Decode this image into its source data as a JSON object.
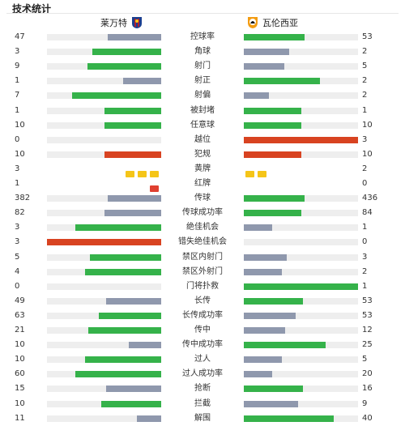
{
  "title": "技术统计",
  "home": {
    "name": "莱万特",
    "crest": "levante-crest-icon"
  },
  "away": {
    "name": "瓦伦西亚",
    "crest": "valencia-crest-icon"
  },
  "colors": {
    "home": "#35b24a",
    "away": "#8f98ad",
    "highlight": "#d84321",
    "track": "#eeeeee"
  },
  "stats": [
    {
      "label": "控球率",
      "home": "47",
      "away": "53",
      "home_share": 0.47,
      "away_share": 0.53,
      "home_color": "#8f98ad",
      "away_color": "#35b24a"
    },
    {
      "label": "角球",
      "home": "3",
      "away": "2",
      "home_share": 0.6,
      "away_share": 0.4,
      "home_color": "#35b24a",
      "away_color": "#8f98ad"
    },
    {
      "label": "射门",
      "home": "9",
      "away": "5",
      "home_share": 0.643,
      "away_share": 0.357,
      "home_color": "#35b24a",
      "away_color": "#8f98ad"
    },
    {
      "label": "射正",
      "home": "1",
      "away": "2",
      "home_share": 0.333,
      "away_share": 0.667,
      "home_color": "#8f98ad",
      "away_color": "#35b24a"
    },
    {
      "label": "射偏",
      "home": "7",
      "away": "2",
      "home_share": 0.778,
      "away_share": 0.222,
      "home_color": "#35b24a",
      "away_color": "#8f98ad"
    },
    {
      "label": "被封堵",
      "home": "1",
      "away": "1",
      "home_share": 0.5,
      "away_share": 0.5,
      "home_color": "#35b24a",
      "away_color": "#35b24a"
    },
    {
      "label": "任意球",
      "home": "10",
      "away": "10",
      "home_share": 0.5,
      "away_share": 0.5,
      "home_color": "#35b24a",
      "away_color": "#35b24a"
    },
    {
      "label": "越位",
      "home": "0",
      "away": "3",
      "home_share": 0,
      "away_share": 1,
      "home_color": "#8f98ad",
      "away_color": "#d84321"
    },
    {
      "label": "犯规",
      "home": "10",
      "away": "10",
      "home_share": 0.5,
      "away_share": 0.5,
      "home_color": "#d84321",
      "away_color": "#d84321"
    },
    {
      "label": "黄牌",
      "home": "3",
      "away": "2",
      "home_cards": 3,
      "away_cards": 2,
      "card_type": "yellow"
    },
    {
      "label": "红牌",
      "home": "1",
      "away": "0",
      "home_cards": 1,
      "away_cards": 0,
      "card_type": "red"
    },
    {
      "label": "传球",
      "home": "382",
      "away": "436",
      "home_share": 0.467,
      "away_share": 0.533,
      "home_color": "#8f98ad",
      "away_color": "#35b24a"
    },
    {
      "label": "传球成功率",
      "home": "82",
      "away": "84",
      "home_share": 0.494,
      "away_share": 0.506,
      "home_color": "#8f98ad",
      "away_color": "#35b24a"
    },
    {
      "label": "绝佳机会",
      "home": "3",
      "away": "1",
      "home_share": 0.75,
      "away_share": 0.25,
      "home_color": "#35b24a",
      "away_color": "#8f98ad"
    },
    {
      "label": "错失绝佳机会",
      "home": "3",
      "away": "0",
      "home_share": 1,
      "away_share": 0,
      "home_color": "#d84321",
      "away_color": "#8f98ad"
    },
    {
      "label": "禁区内射门",
      "home": "5",
      "away": "3",
      "home_share": 0.625,
      "away_share": 0.375,
      "home_color": "#35b24a",
      "away_color": "#8f98ad"
    },
    {
      "label": "禁区外射门",
      "home": "4",
      "away": "2",
      "home_share": 0.667,
      "away_share": 0.333,
      "home_color": "#35b24a",
      "away_color": "#8f98ad"
    },
    {
      "label": "门将扑救",
      "home": "0",
      "away": "1",
      "home_share": 0,
      "away_share": 1,
      "home_color": "#8f98ad",
      "away_color": "#35b24a"
    },
    {
      "label": "长传",
      "home": "49",
      "away": "53",
      "home_share": 0.48,
      "away_share": 0.52,
      "home_color": "#8f98ad",
      "away_color": "#35b24a"
    },
    {
      "label": "长传成功率",
      "home": "63",
      "away": "53",
      "home_share": 0.543,
      "away_share": 0.457,
      "home_color": "#35b24a",
      "away_color": "#8f98ad"
    },
    {
      "label": "传中",
      "home": "21",
      "away": "12",
      "home_share": 0.636,
      "away_share": 0.364,
      "home_color": "#35b24a",
      "away_color": "#8f98ad"
    },
    {
      "label": "传中成功率",
      "home": "10",
      "away": "25",
      "home_share": 0.286,
      "away_share": 0.714,
      "home_color": "#8f98ad",
      "away_color": "#35b24a"
    },
    {
      "label": "过人",
      "home": "10",
      "away": "5",
      "home_share": 0.667,
      "away_share": 0.333,
      "home_color": "#35b24a",
      "away_color": "#8f98ad"
    },
    {
      "label": "过人成功率",
      "home": "60",
      "away": "20",
      "home_share": 0.75,
      "away_share": 0.25,
      "home_color": "#35b24a",
      "away_color": "#8f98ad"
    },
    {
      "label": "抢断",
      "home": "15",
      "away": "16",
      "home_share": 0.484,
      "away_share": 0.516,
      "home_color": "#8f98ad",
      "away_color": "#35b24a"
    },
    {
      "label": "拦截",
      "home": "10",
      "away": "9",
      "home_share": 0.526,
      "away_share": 0.474,
      "home_color": "#35b24a",
      "away_color": "#8f98ad"
    },
    {
      "label": "解围",
      "home": "11",
      "away": "40",
      "home_share": 0.216,
      "away_share": 0.784,
      "home_color": "#8f98ad",
      "away_color": "#35b24a"
    }
  ]
}
